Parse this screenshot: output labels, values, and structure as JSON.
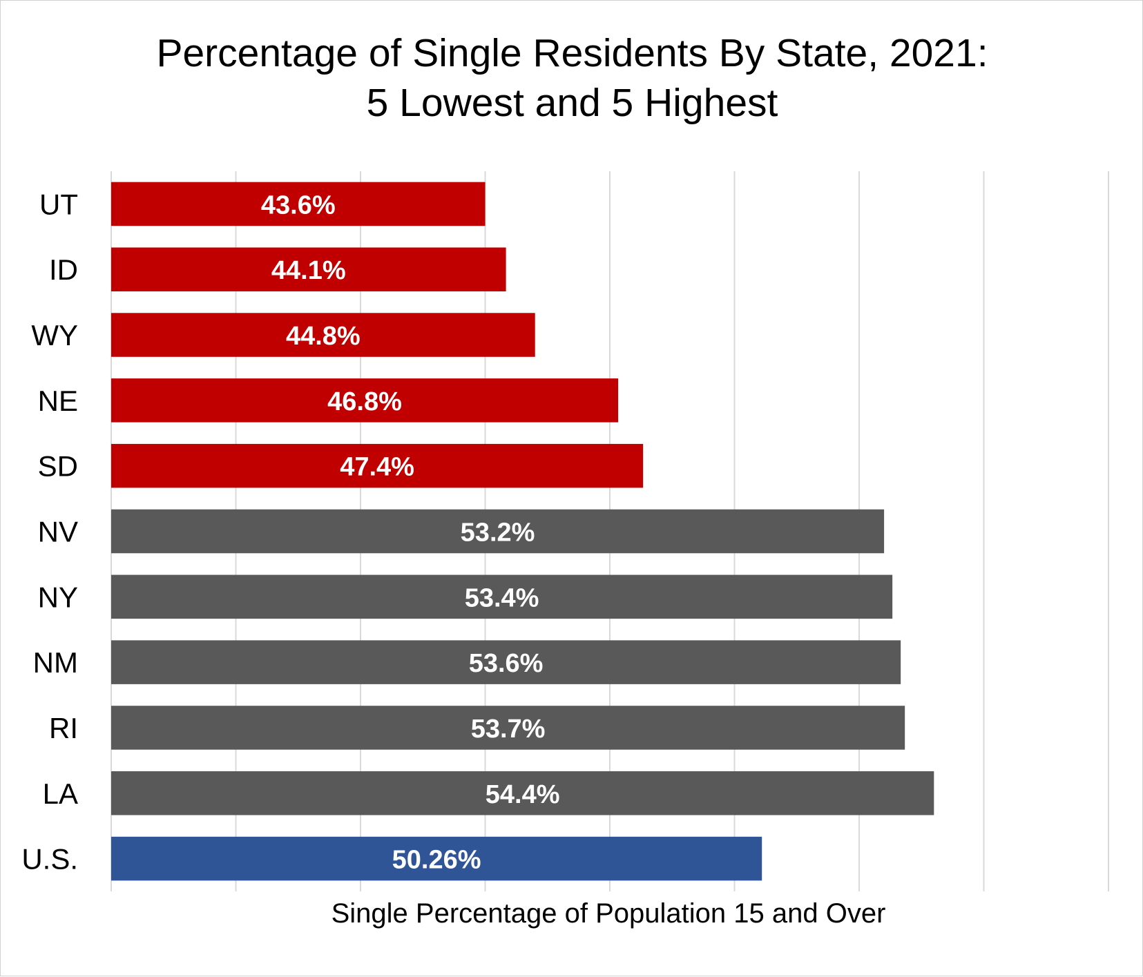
{
  "chart_data": {
    "type": "bar",
    "orientation": "horizontal",
    "title": [
      "Percentage of Single Residents By State, 2021:",
      "5 Lowest and 5 Highest"
    ],
    "xlabel": "Single Percentage of Population 15 and Over",
    "ylabel": "",
    "xlim": [
      34.6,
      58.6
    ],
    "grid": true,
    "legend": "none",
    "categories": [
      "UT",
      "ID",
      "WY",
      "NE",
      "SD",
      "NV",
      "NY",
      "NM",
      "RI",
      "LA",
      "U.S."
    ],
    "values": [
      43.6,
      44.1,
      44.8,
      46.8,
      47.4,
      53.2,
      53.4,
      53.6,
      53.7,
      54.4,
      50.26
    ],
    "value_labels": [
      "43.6%",
      "44.1%",
      "44.8%",
      "46.8%",
      "47.4%",
      "53.2%",
      "53.4%",
      "53.6%",
      "53.7%",
      "54.4%",
      "50.26%"
    ],
    "groups": [
      "lowest",
      "lowest",
      "lowest",
      "lowest",
      "lowest",
      "highest",
      "highest",
      "highest",
      "highest",
      "highest",
      "us"
    ],
    "colors": {
      "lowest": "#C00000",
      "highest": "#595959",
      "us": "#2F5597",
      "grid": "#D9D9D9",
      "label_text": "#FFFFFF"
    }
  }
}
